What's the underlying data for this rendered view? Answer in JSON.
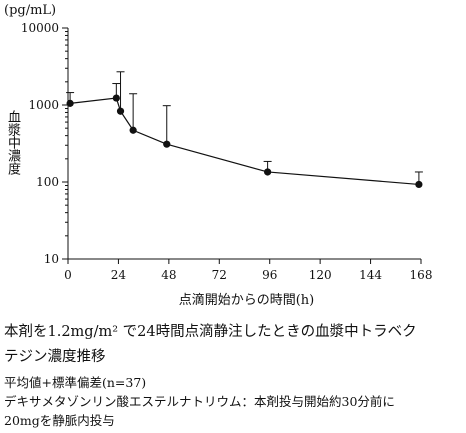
{
  "chart_data": {
    "type": "line",
    "unit_label": "(pg/mL)",
    "ylabel": "血漿中濃度",
    "xlabel": "点滴開始からの時間(h)",
    "yscale": "log",
    "ylim": [
      10,
      10000
    ],
    "xlim": [
      0,
      168
    ],
    "x_ticks": [
      0,
      24,
      48,
      72,
      96,
      120,
      144,
      168
    ],
    "y_ticks": [
      10,
      100,
      1000,
      10000
    ],
    "x_tick_labels": [
      "0",
      "24",
      "48",
      "72",
      "96",
      "120",
      "144",
      "168"
    ],
    "y_tick_labels": [
      "10",
      "100",
      "1000",
      "10000"
    ],
    "grid": false,
    "series": [
      {
        "x": [
          1,
          23,
          25,
          31,
          47,
          95,
          167
        ],
        "y": [
          1050,
          1230,
          830,
          470,
          310,
          135,
          93
        ],
        "error_upper": [
          1450,
          1900,
          2700,
          1400,
          980,
          185,
          135
        ]
      }
    ],
    "color": "#111111"
  },
  "caption": {
    "line1": "本剤を1.2mg/m² で24時間点滴静注したときの血漿中トラベク",
    "line2": "テジン濃度推移"
  },
  "notes": {
    "line1": "平均値+標準偏差(n=37)",
    "line2": "デキサメタゾンリン酸エステルナトリウム：本剤投与開始約30分前に",
    "line3": "20mgを静脈内投与"
  }
}
